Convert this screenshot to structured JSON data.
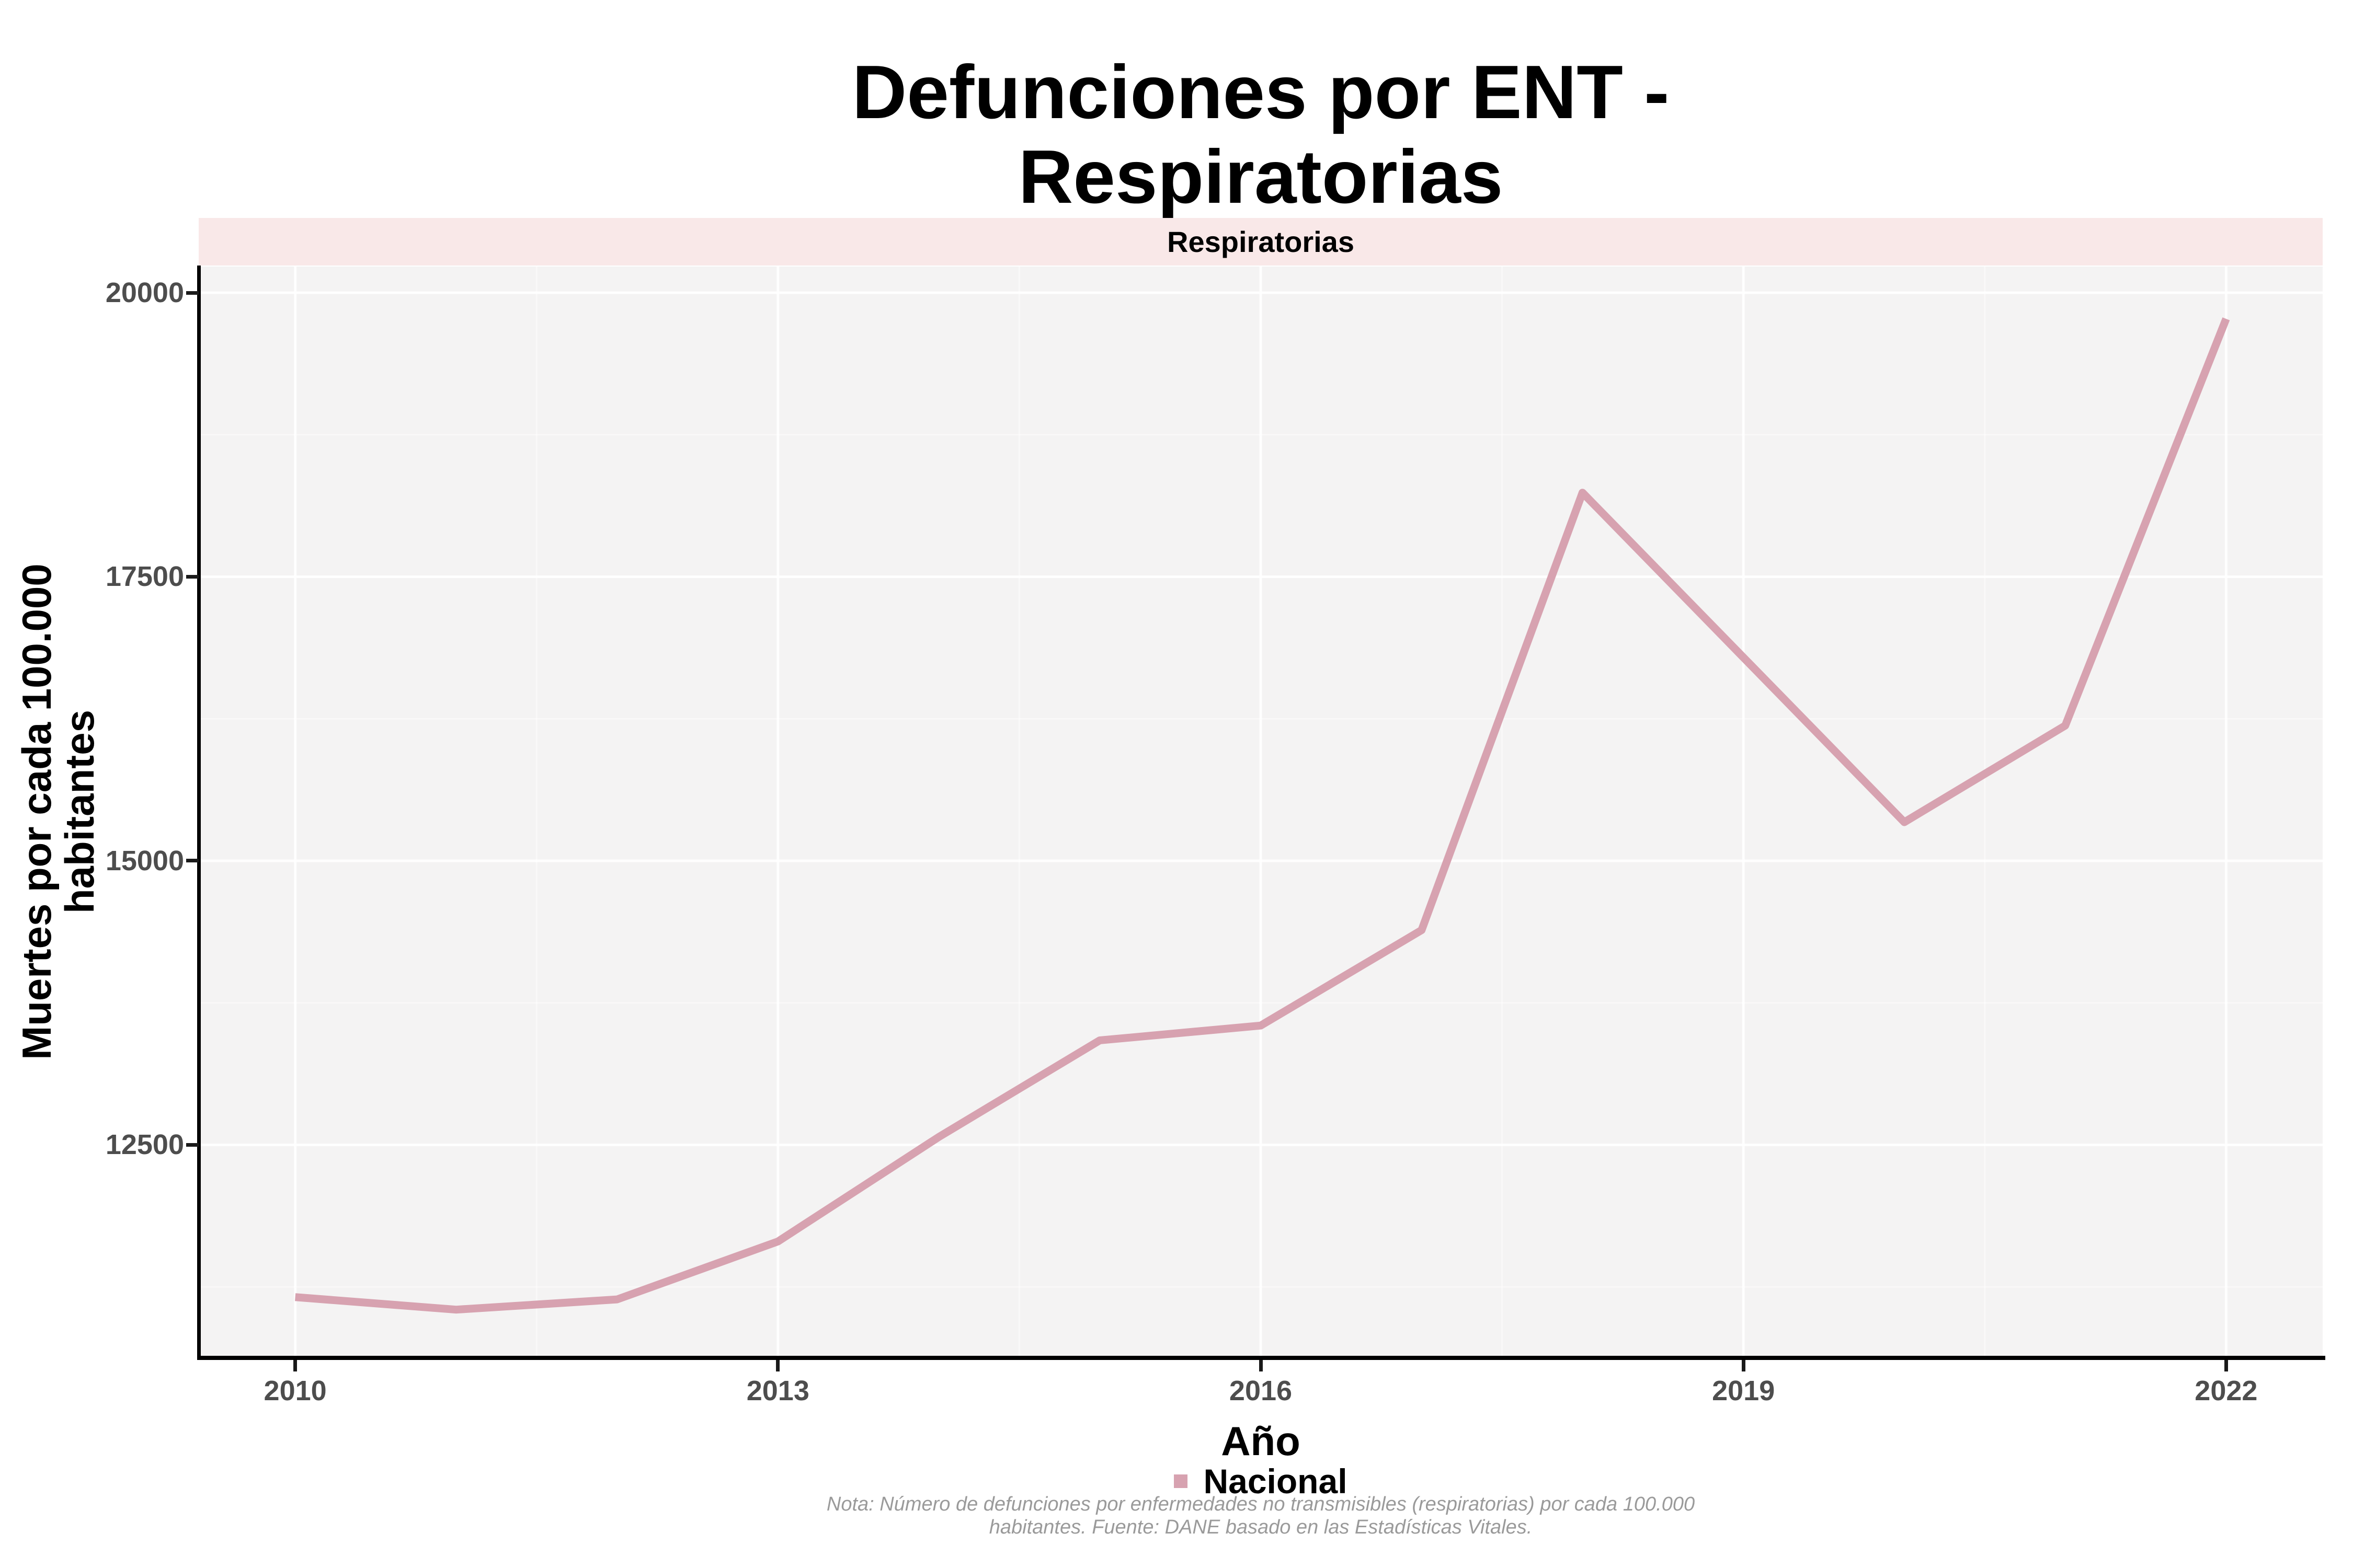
{
  "chart_data": {
    "type": "line",
    "title": "Defunciones por ENT - Respiratorias",
    "facet_label": "Respiratorias",
    "xlabel": "Año",
    "ylabel": "Muertes por cada 100.000 habitantes",
    "legend_position": "bottom",
    "grid": "white major and minor gridlines on light gray panel",
    "x_domain": [
      2009.4,
      2022.6
    ],
    "y_domain": [
      10630,
      20230
    ],
    "x_ticks": {
      "values": [
        2010,
        2013,
        2016,
        2019,
        2022
      ],
      "labels": [
        "2010",
        "2013",
        "2016",
        "2019",
        "2022"
      ]
    },
    "y_ticks": {
      "values": [
        12500,
        15000,
        17500,
        20000
      ],
      "labels": [
        "12500",
        "15000",
        "17500",
        "20000"
      ]
    },
    "series": [
      {
        "name": "Nacional",
        "color": "#d7a2b0",
        "x": [
          2010,
          2011,
          2012,
          2013,
          2014,
          2015,
          2016,
          2017,
          2018,
          2019,
          2020,
          2021,
          2022
        ],
        "values": [
          11160,
          11050,
          11140,
          11650,
          12570,
          13420,
          13550,
          14390,
          18240,
          16790,
          15340,
          16190,
          19770
        ]
      }
    ]
  },
  "legend": {
    "label": "Nacional"
  },
  "note": {
    "line1": "Nota: Número de defunciones por enfermedades no transmisibles (respiratorias) por cada 100.000",
    "line2": "habitantes. Fuente: DANE basado en las Estadísticas Vitales."
  },
  "colors": {
    "line": "#d7a2b0",
    "strip_bg": "#f9e8e8",
    "panel_bg": "#f4f3f3",
    "grid_major": "rgba(255,255,255,0.9)",
    "grid_minor": "rgba(255,255,255,0.45)",
    "axis_text": "#4d4d4d",
    "title_text": "#000000",
    "note_text": "#9a9a9a",
    "axis_line": "#000000"
  }
}
